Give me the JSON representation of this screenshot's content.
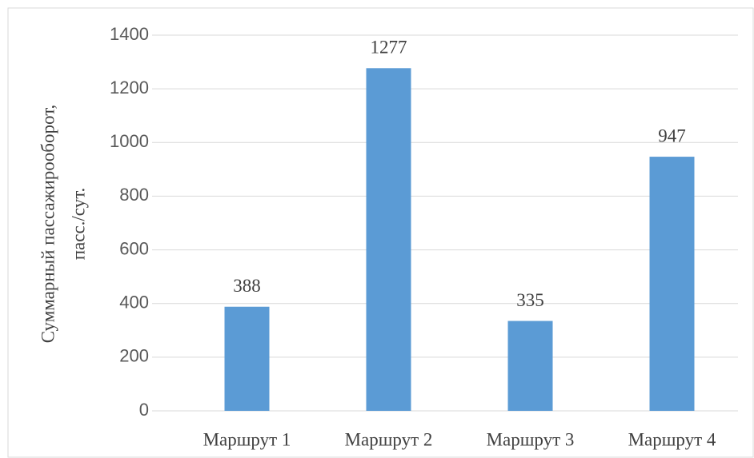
{
  "chart_data": {
    "type": "bar",
    "y_label": [
      "Суммарный пассажирооборот,",
      "пасс./сут."
    ],
    "categories": [
      "Маршрут 1",
      "Маршрут 2",
      "Маршрут 3",
      "Маршрут 4"
    ],
    "values": [
      388,
      1277,
      335,
      947
    ],
    "color": "#5b9bd5",
    "ylim": [
      0,
      1400
    ],
    "yticks": [
      0,
      200,
      400,
      600,
      800,
      1000,
      1200,
      1400
    ],
    "grid": true
  }
}
